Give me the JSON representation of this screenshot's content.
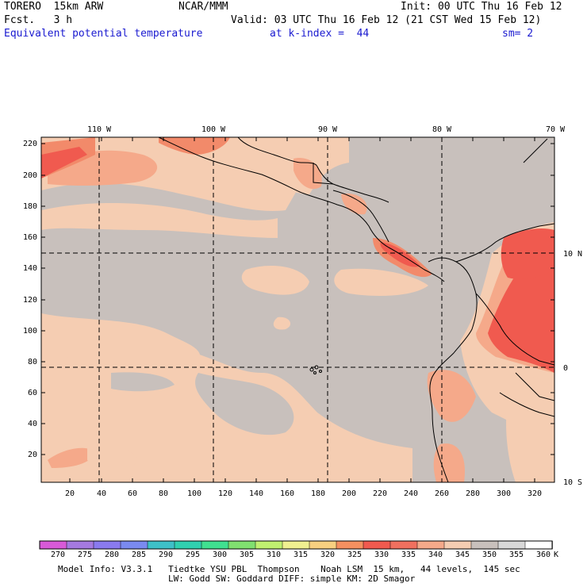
{
  "header": {
    "model": "TORERO  15km ARW",
    "center": "NCAR/MMM",
    "init": "Init: 00 UTC Thu 16 Feb 12",
    "fcst": "Fcst.   3 h",
    "valid": "Valid: 03 UTC Thu 16 Feb 12 (21 CST Wed 15 Feb 12)",
    "field": "Equivalent potential temperature",
    "level": "at k-index =  44",
    "smooth": "sm= 2"
  },
  "map": {
    "lon_labels": [
      "110 W",
      "100 W",
      "90 W",
      "80 W",
      "70 W"
    ],
    "lat_labels": [
      "10 N",
      "0",
      "10 S"
    ],
    "y_ticks": [
      "220",
      "200",
      "180",
      "160",
      "140",
      "120",
      "100",
      "80",
      "60",
      "40",
      "20"
    ],
    "x_ticks": [
      "20",
      "40",
      "60",
      "80",
      "100",
      "120",
      "140",
      "160",
      "180",
      "200",
      "220",
      "240",
      "260",
      "280",
      "300",
      "320"
    ],
    "colors": {
      "background": "#c8c0bc",
      "light_salmon": "#f5cdb2",
      "salmon": "#f5a98a",
      "coral": "#f28a6a",
      "red": "#f05a4f",
      "coast": "#000000"
    }
  },
  "colorbar": {
    "labels": [
      "270",
      "275",
      "280",
      "285",
      "290",
      "295",
      "300",
      "305",
      "310",
      "315",
      "320",
      "325",
      "330",
      "335",
      "340",
      "345",
      "350",
      "355",
      "360"
    ],
    "unit": "K",
    "colors": [
      "#d85ad8",
      "#a57ae0",
      "#8a7aef",
      "#7a8af0",
      "#3ec0c8",
      "#30d0b0",
      "#40e090",
      "#80e070",
      "#c0f070",
      "#f0f090",
      "#f8d080",
      "#f59060",
      "#f05a4f",
      "#f0705f",
      "#f5a98a",
      "#f5cdb2",
      "#c8c0bc",
      "#d8d8d8",
      "#ffffff"
    ]
  },
  "footer": {
    "line1": "Model Info: V3.3.1   Tiedtke YSU PBL  Thompson    Noah LSM  15 km,   44 levels,  145 sec",
    "line2": "LW: Godd SW: Goddard DIFF: simple KM: 2D Smagor"
  }
}
